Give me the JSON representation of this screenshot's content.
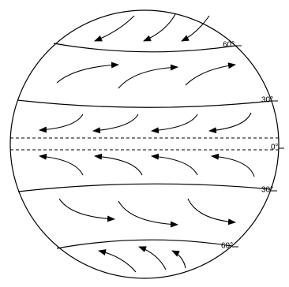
{
  "latitude_labels": [
    "60°",
    "30°",
    "0°",
    "30°",
    "60°"
  ]
}
